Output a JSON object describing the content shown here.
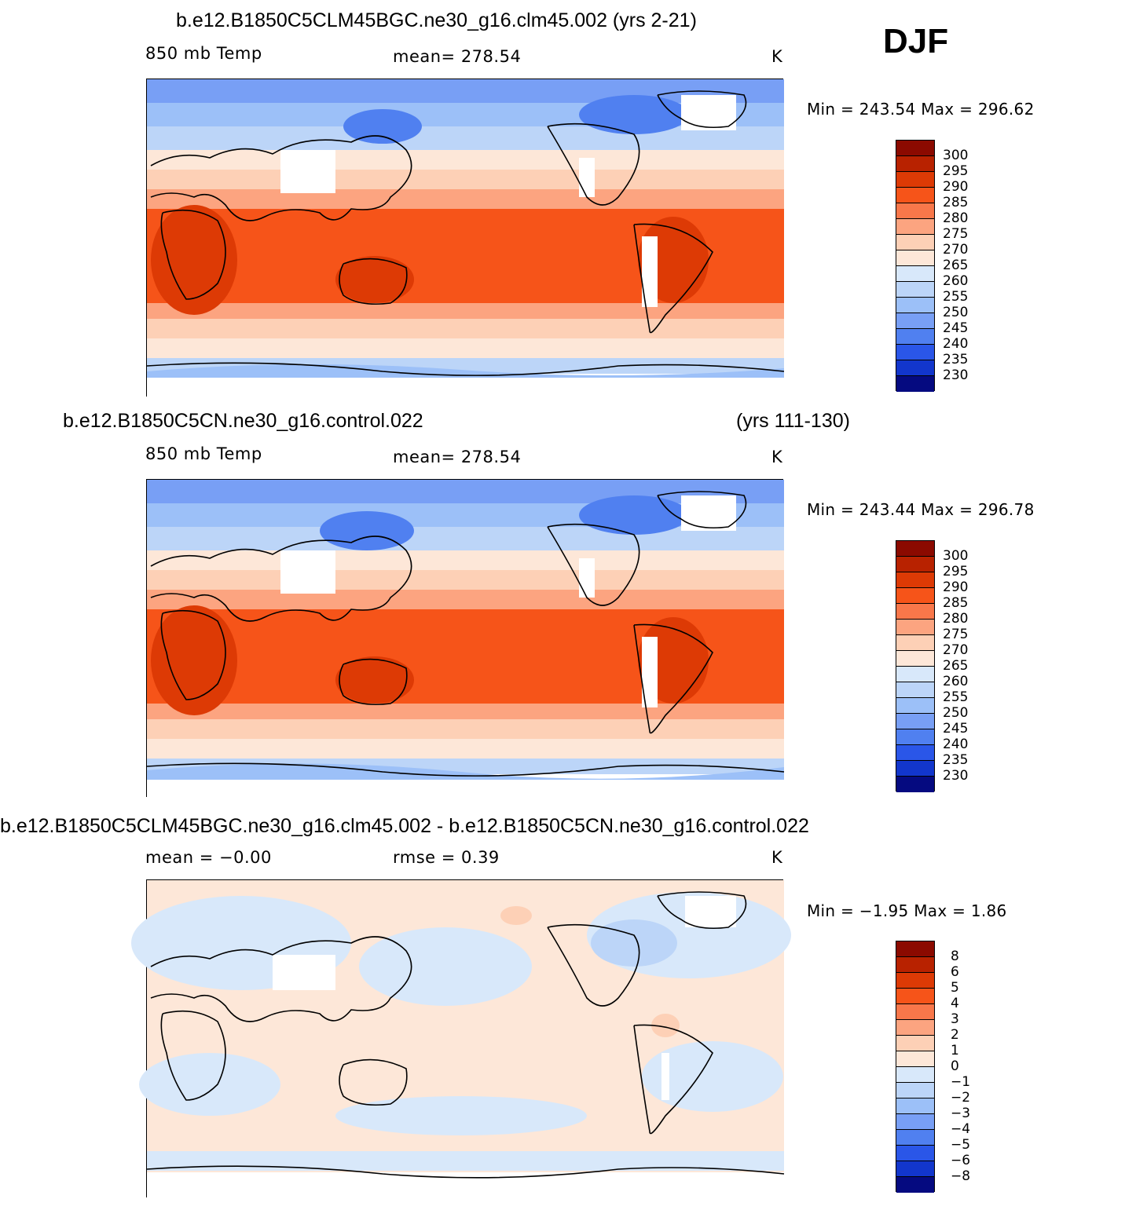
{
  "season": "DJF",
  "panels": [
    {
      "title": "b.e12.B1850C5CLM45BGC.ne30_g16.clm45.002 (yrs 2-21)",
      "field": "850 mb Temp",
      "stat": "mean= 278.54",
      "units": "K",
      "minmax": "Min = 243.54 Max = 296.62",
      "colorbar": {
        "labels": [
          "300",
          "295",
          "290",
          "285",
          "280",
          "275",
          "270",
          "265",
          "260",
          "255",
          "250",
          "245",
          "240",
          "235",
          "230"
        ],
        "colors": [
          "#8b0a00",
          "#b82200",
          "#dd3a05",
          "#f65419",
          "#f8774a",
          "#fca480",
          "#fdd0b6",
          "#fde7d8",
          "#d8e8fa",
          "#bcd5f8",
          "#9cc0f8",
          "#789ff5",
          "#5080f0",
          "#2a56e8",
          "#1236cc",
          "#0a1fa3",
          "#050a80"
        ]
      }
    },
    {
      "title_left": "b.e12.B1850C5CN.ne30_g16.control.022",
      "title_right": "(yrs 111-130)",
      "field": "850 mb Temp",
      "stat": "mean= 278.54",
      "units": "K",
      "minmax": "Min = 243.44 Max = 296.78",
      "colorbar": {
        "labels": [
          "300",
          "295",
          "290",
          "285",
          "280",
          "275",
          "270",
          "265",
          "260",
          "255",
          "250",
          "245",
          "240",
          "235",
          "230"
        ],
        "colors": [
          "#8b0a00",
          "#b82200",
          "#dd3a05",
          "#f65419",
          "#f8774a",
          "#fca480",
          "#fdd0b6",
          "#fde7d8",
          "#d8e8fa",
          "#bcd5f8",
          "#9cc0f8",
          "#789ff5",
          "#5080f0",
          "#2a56e8",
          "#1236cc",
          "#0a1fa3",
          "#050a80"
        ]
      }
    },
    {
      "title": "b.e12.B1850C5CLM45BGC.ne30_g16.clm45.002 - b.e12.B1850C5CN.ne30_g16.control.022",
      "stat_left": "mean =   −0.00",
      "stat_right": "rmse =    0.39",
      "units": "K",
      "minmax": "Min =  −1.95 Max =    1.86",
      "colorbar": {
        "labels": [
          "8",
          "6",
          "5",
          "4",
          "3",
          "2",
          "1",
          "0",
          "−1",
          "−2",
          "−3",
          "−4",
          "−5",
          "−6",
          "−8"
        ],
        "colors": [
          "#8b0a00",
          "#b82200",
          "#dd3a05",
          "#f65419",
          "#f8774a",
          "#fca480",
          "#fdd0b6",
          "#fde7d8",
          "#d8e8fa",
          "#bcd5f8",
          "#9cc0f8",
          "#789ff5",
          "#5080f0",
          "#2a56e8",
          "#1236cc",
          "#0a1fa3",
          "#050a80"
        ]
      }
    }
  ]
}
